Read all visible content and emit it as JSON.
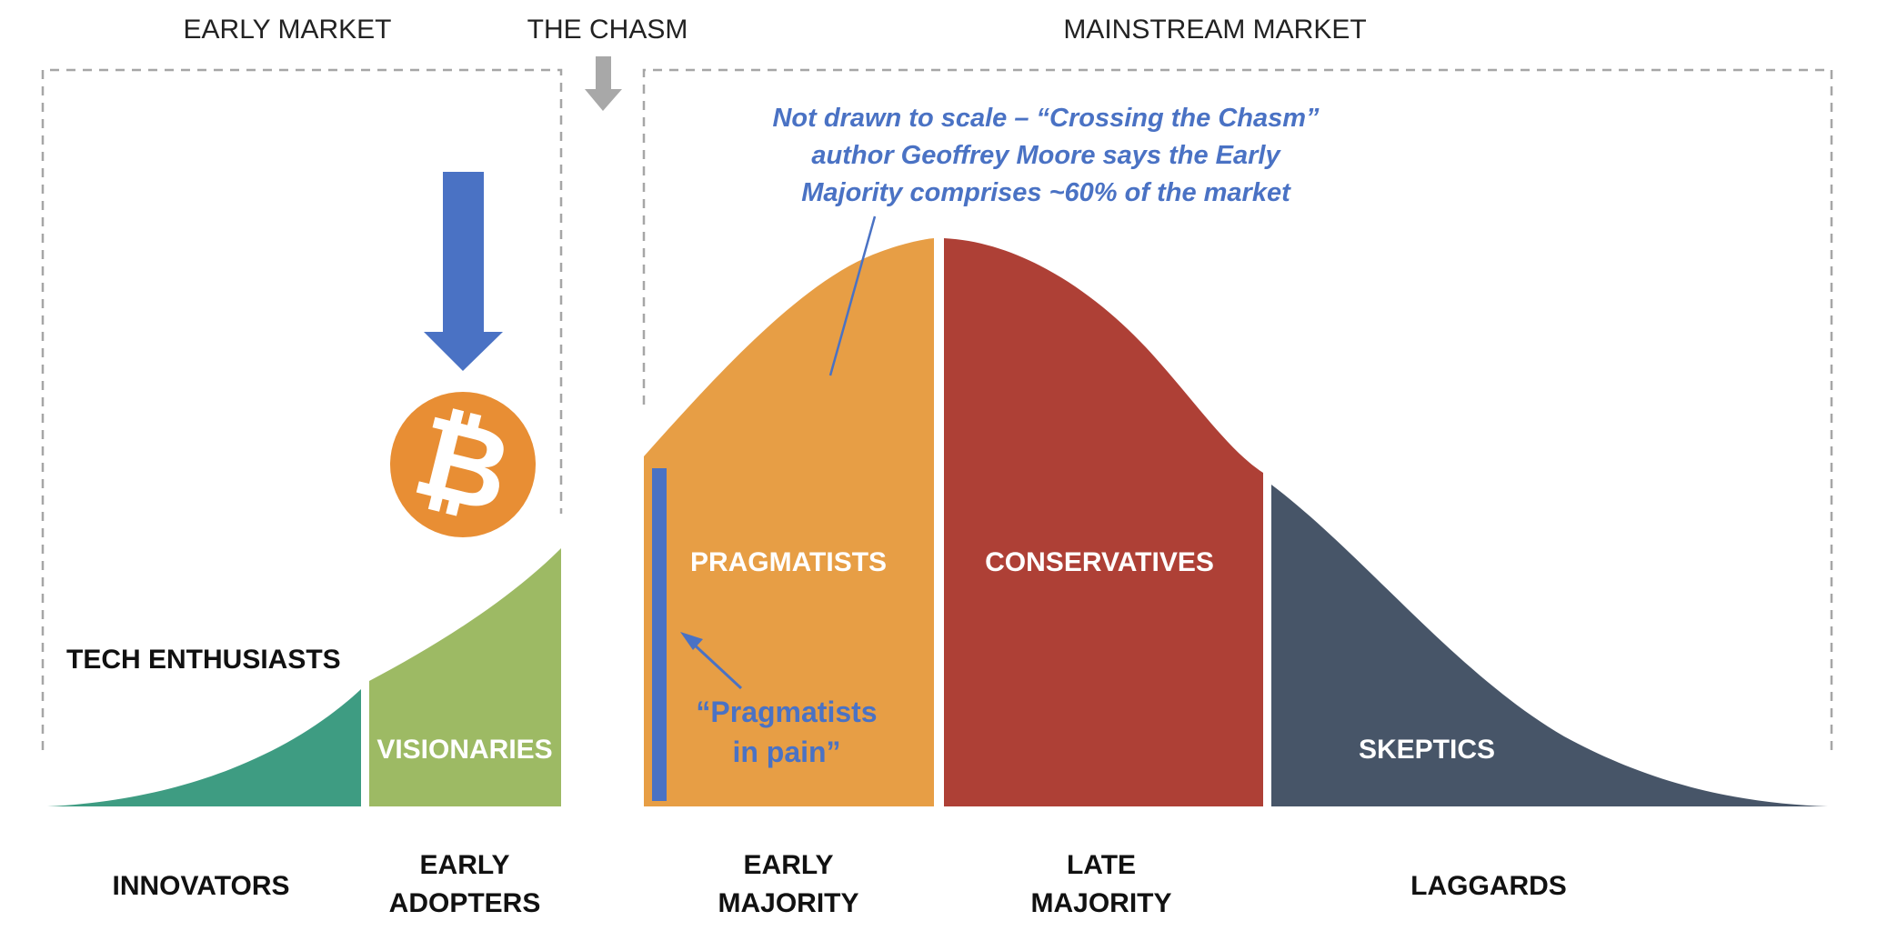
{
  "headers": {
    "early_market": "EARLY MARKET",
    "chasm": "THE CHASM",
    "mainstream_market": "MAINSTREAM MARKET"
  },
  "note": {
    "line1": "Not drawn to scale – “Crossing the Chasm”",
    "line2": "author Geoffrey Moore says the Early",
    "line3": "Majority comprises ~60% of the market"
  },
  "segments": {
    "tech_enthusiasts": "TECH ENTHUSIASTS",
    "visionaries": "VISIONARIES",
    "pragmatists": "PRAGMATISTS",
    "conservatives": "CONSERVATIVES",
    "skeptics": "SKEPTICS"
  },
  "pain_label": {
    "line1": "“Pragmatists",
    "line2": "in pain”"
  },
  "categories": {
    "innovators": "INNOVATORS",
    "early_adopters_1": "EARLY",
    "early_adopters_2": "ADOPTERS",
    "early_majority_1": "EARLY",
    "early_majority_2": "MAJORITY",
    "late_majority_1": "LATE",
    "late_majority_2": "MAJORITY",
    "laggards": "LAGGARDS"
  },
  "icons": {
    "bitcoin": "bitcoin-logo-icon",
    "arrow": "down-arrow-icon"
  },
  "colors": {
    "innovators": "#3e9c82",
    "early_adopters": "#9dba64",
    "early_majority": "#e79e45",
    "late_majority": "#ae4036",
    "laggards": "#475568",
    "accent_blue": "#4a72c4",
    "note_text": "#4a72c4",
    "bitcoin": "#e88e34",
    "chasm_arrow": "#a8a8a8",
    "dashed_border": "#a6a6a6"
  }
}
